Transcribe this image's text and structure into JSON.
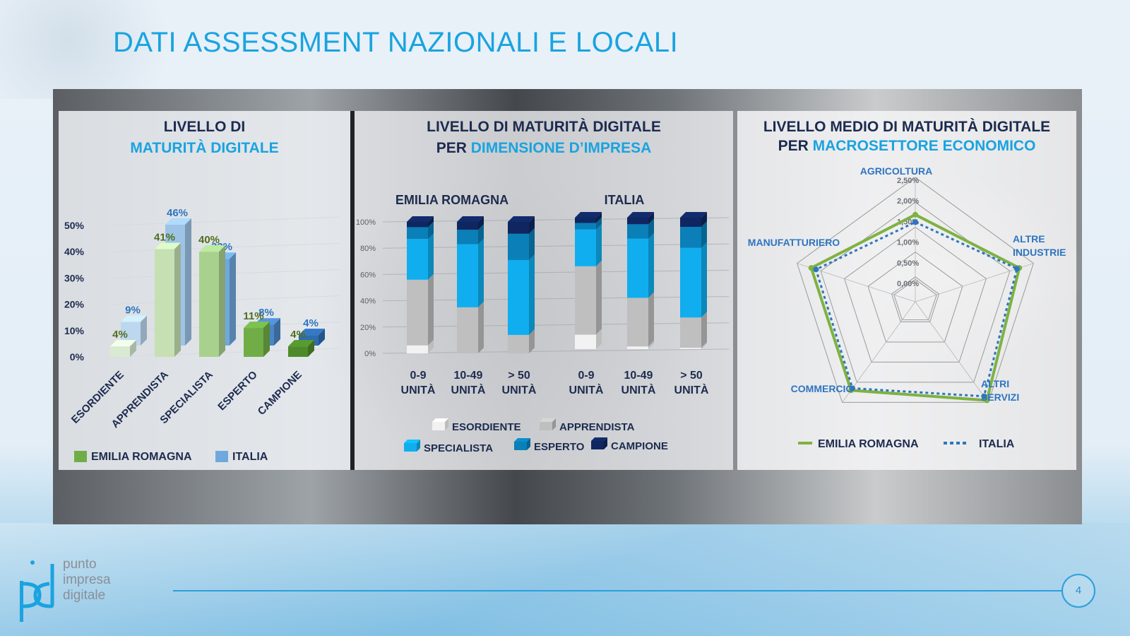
{
  "slide": {
    "title": "DATI ASSESSMENT NAZIONALI E LOCALI",
    "page_number": "4",
    "logo_lines": [
      "punto",
      "impresa",
      "digitale"
    ]
  },
  "colors": {
    "title": "#1aa3e0",
    "emilia_romagna": "#7fb241",
    "italia": "#5b9bd5",
    "esordiente": "#f2f2f2",
    "apprendista": "#bfbfbf",
    "specialista": "#10aeef",
    "esperto": "#0a7fb8",
    "campione": "#0f2660"
  },
  "panels": {
    "left": {
      "title_line1": "LIVELLO DI",
      "title_line2": "MATURITÀ DIGITALE"
    },
    "mid": {
      "title_line1": "LIVELLO DI MATURITÀ DIGITALE",
      "title_line2_prefix": "PER ",
      "title_line2_highlight": "DIMENSIONE D’IMPRESA"
    },
    "right": {
      "title_line1": "LIVELLO MEDIO DI MATURITÀ DIGITALE",
      "title_line2_prefix": "PER ",
      "title_line2_highlight": "MACROSETTORE ECONOMICO"
    }
  },
  "chart_data": [
    {
      "type": "bar",
      "categories": [
        "ESORDIENTE",
        "APPRENDISTA",
        "SPECIALISTA",
        "ESPERTO",
        "CAMPIONE"
      ],
      "series": [
        {
          "name": "EMILIA ROMAGNA",
          "values": [
            4,
            41,
            40,
            11,
            4
          ],
          "labels": [
            "4%",
            "41%",
            "40%",
            "11%",
            "4%"
          ]
        },
        {
          "name": "ITALIA",
          "values": [
            9,
            46,
            33,
            8,
            4
          ],
          "labels": [
            "9%",
            "46%",
            "33%",
            "8%",
            "4%"
          ]
        }
      ],
      "bar_colors": {
        "EMILIA ROMAGNA": [
          "#d9ead3",
          "#c6e0b4",
          "#a9d18e",
          "#70ad47",
          "#4f8a2a"
        ],
        "ITALIA": [
          "#bdd7ee",
          "#9dc3e6",
          "#6fa8dc",
          "#4a86c5",
          "#2e6cb0"
        ]
      },
      "yticks": [
        "0%",
        "10%",
        "20%",
        "30%",
        "40%",
        "50%"
      ],
      "ylim": [
        0,
        50
      ]
    },
    {
      "type": "bar",
      "stacked": true,
      "groups": [
        {
          "name": "EMILIA ROMAGNA",
          "categories": [
            "0-9 UNITÀ",
            "10-49 UNITÀ",
            "> 50 UNITÀ"
          ]
        },
        {
          "name": "ITALIA",
          "categories": [
            "0-9 UNITÀ",
            "10-49 UNITÀ",
            "> 50 UNITÀ"
          ]
        }
      ],
      "series": [
        {
          "name": "ESORDIENTE",
          "values": [
            6,
            0,
            0,
            11,
            2,
            1
          ]
        },
        {
          "name": "APPRENDISTA",
          "values": [
            50,
            35,
            14,
            52,
            37,
            23
          ]
        },
        {
          "name": "SPECIALISTA",
          "values": [
            31,
            48,
            57,
            28,
            45,
            53
          ]
        },
        {
          "name": "ESPERTO",
          "values": [
            9,
            11,
            20,
            5,
            11,
            16
          ]
        },
        {
          "name": "CAMPIONE",
          "values": [
            4,
            6,
            9,
            4,
            5,
            7
          ]
        }
      ],
      "yticks": [
        "0%",
        "20%",
        "40%",
        "60%",
        "80%",
        "100%"
      ],
      "ylim": [
        0,
        100
      ]
    },
    {
      "type": "radar",
      "axes": [
        "AGRICOLTURA",
        "ALTRE INDUSTRIE",
        "ALTRI SERVIZI",
        "COMMERCIO",
        "MANUFATTURIERO"
      ],
      "series": [
        {
          "name": "EMILIA ROMAGNA",
          "values": [
            1.75,
            2.2,
            2.45,
            2.2,
            2.2
          ]
        },
        {
          "name": "ITALIA",
          "values": [
            1.6,
            2.15,
            2.35,
            2.15,
            2.1
          ]
        }
      ],
      "rticks": [
        "0,00%",
        "0,50%",
        "1,00%",
        "1,50%",
        "2,00%",
        "2,50%"
      ],
      "rlim": [
        0,
        2.5
      ]
    }
  ],
  "axis_label_lines": {
    "mid": [
      [
        "0-9",
        "UNITÀ"
      ],
      [
        "10-49",
        "UNITÀ"
      ],
      [
        "> 50",
        "UNITÀ"
      ]
    ],
    "radar": {
      "AGRICOLTURA": [
        "AGRICOLTURA"
      ],
      "ALTRE INDUSTRIE": [
        "ALTRE",
        "INDUSTRIE"
      ],
      "ALTRI SERVIZI": [
        "ALTRI",
        "SERVIZI"
      ],
      "COMMERCIO": [
        "COMMERCIO"
      ],
      "MANUFATTURIERO": [
        "MANUFATTURIERO"
      ]
    }
  }
}
